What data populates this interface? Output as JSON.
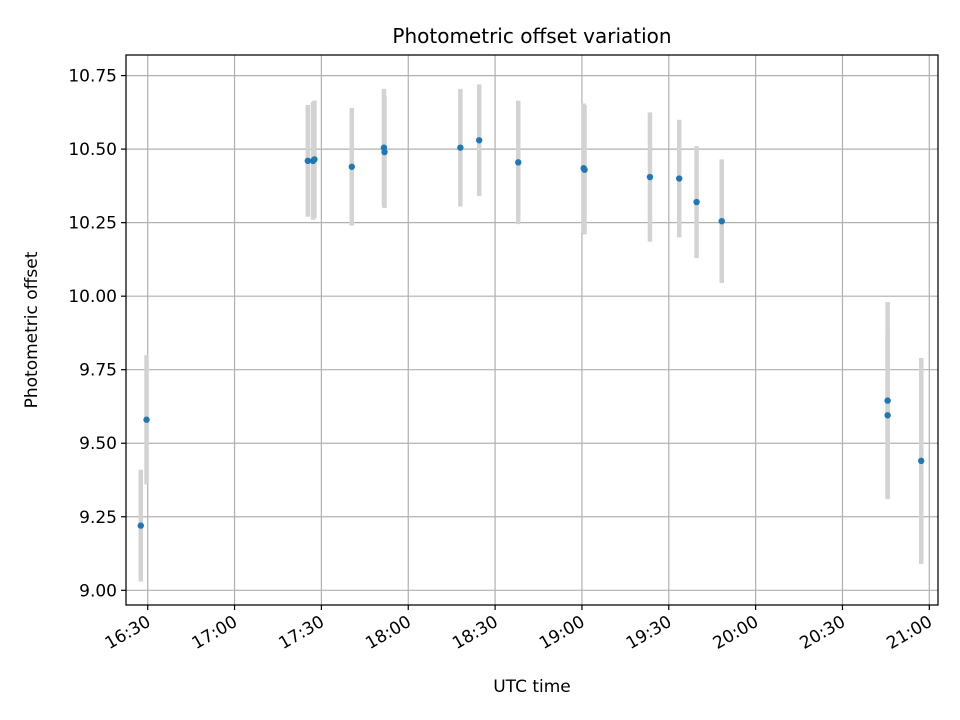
{
  "chart_data": {
    "type": "scatter",
    "title": "Photometric offset variation",
    "xlabel": "UTC time",
    "ylabel": "Photometric offset",
    "grid": true,
    "x_unit": "minutes since 00:00 UTC",
    "xlim": [
      982.5,
      1263.0
    ],
    "ylim": [
      8.95,
      10.82
    ],
    "x_ticks": [
      {
        "value": 990,
        "label": "16:30"
      },
      {
        "value": 1020,
        "label": "17:00"
      },
      {
        "value": 1050,
        "label": "17:30"
      },
      {
        "value": 1080,
        "label": "18:00"
      },
      {
        "value": 1110,
        "label": "18:30"
      },
      {
        "value": 1140,
        "label": "19:00"
      },
      {
        "value": 1170,
        "label": "19:30"
      },
      {
        "value": 1200,
        "label": "20:00"
      },
      {
        "value": 1230,
        "label": "20:30"
      },
      {
        "value": 1260,
        "label": "21:00"
      }
    ],
    "y_ticks": [
      {
        "value": 9.0,
        "label": "9.00"
      },
      {
        "value": 9.25,
        "label": "9.25"
      },
      {
        "value": 9.5,
        "label": "9.50"
      },
      {
        "value": 9.75,
        "label": "9.75"
      },
      {
        "value": 10.0,
        "label": "10.00"
      },
      {
        "value": 10.25,
        "label": "10.25"
      },
      {
        "value": 10.5,
        "label": "10.50"
      },
      {
        "value": 10.75,
        "label": "10.75"
      }
    ],
    "series": [
      {
        "name": "offset",
        "color": "#1f77b4",
        "errorbar_color": "#d3d3d3",
        "points": [
          {
            "x": 987.6,
            "y": 9.22,
            "err": 0.19
          },
          {
            "x": 989.6,
            "y": 9.58,
            "err": 0.22
          },
          {
            "x": 1045.3,
            "y": 10.46,
            "err": 0.19
          },
          {
            "x": 1047.1,
            "y": 10.46,
            "err": 0.2
          },
          {
            "x": 1047.6,
            "y": 10.465,
            "err": 0.2
          },
          {
            "x": 1060.5,
            "y": 10.44,
            "err": 0.2
          },
          {
            "x": 1071.6,
            "y": 10.505,
            "err": 0.2
          },
          {
            "x": 1071.8,
            "y": 10.49,
            "err": 0.19
          },
          {
            "x": 1098.0,
            "y": 10.505,
            "err": 0.2
          },
          {
            "x": 1104.5,
            "y": 10.53,
            "err": 0.19
          },
          {
            "x": 1118.0,
            "y": 10.455,
            "err": 0.21
          },
          {
            "x": 1140.6,
            "y": 10.435,
            "err": 0.22
          },
          {
            "x": 1140.9,
            "y": 10.43,
            "err": 0.22
          },
          {
            "x": 1163.5,
            "y": 10.405,
            "err": 0.22
          },
          {
            "x": 1173.6,
            "y": 10.4,
            "err": 0.2
          },
          {
            "x": 1179.6,
            "y": 10.32,
            "err": 0.19
          },
          {
            "x": 1188.3,
            "y": 10.255,
            "err": 0.21
          },
          {
            "x": 1245.6,
            "y": 9.645,
            "err": 0.335
          },
          {
            "x": 1245.6,
            "y": 9.595,
            "err": 0.28
          },
          {
            "x": 1257.2,
            "y": 9.44,
            "err": 0.35
          }
        ]
      }
    ]
  }
}
